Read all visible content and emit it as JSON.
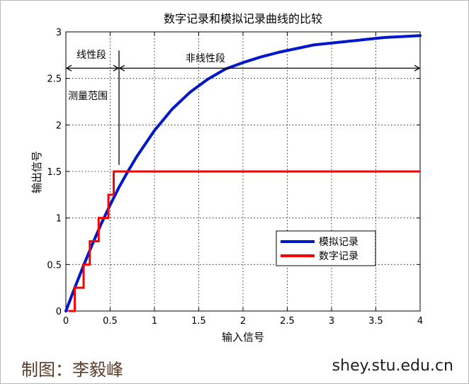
{
  "chart_data": {
    "type": "line",
    "title": "数字记录和模拟记录曲线的比较",
    "xlabel": "输入信号",
    "ylabel": "输出信号",
    "xlim": [
      0,
      4
    ],
    "ylim": [
      0,
      3
    ],
    "xticks": [
      "0",
      "0.5",
      "1",
      "1.5",
      "2",
      "2.5",
      "3",
      "3.5",
      "4"
    ],
    "yticks": [
      "0",
      "0.5",
      "1",
      "1.5",
      "2",
      "2.5",
      "3"
    ],
    "grid": true,
    "legend_position": "bottom-right",
    "series": [
      {
        "name": "模拟记录",
        "color": "#0018c8",
        "x": [
          0,
          0.1,
          0.2,
          0.3,
          0.4,
          0.5,
          0.6,
          0.7,
          0.8,
          0.9,
          1.0,
          1.2,
          1.4,
          1.6,
          1.8,
          2.0,
          2.2,
          2.4,
          2.6,
          2.8,
          3.0,
          3.2,
          3.4,
          3.6,
          3.8,
          4.0
        ],
        "values": [
          0,
          0.25,
          0.49,
          0.72,
          0.94,
          1.14,
          1.33,
          1.5,
          1.66,
          1.8,
          1.94,
          2.17,
          2.35,
          2.49,
          2.6,
          2.67,
          2.73,
          2.78,
          2.82,
          2.86,
          2.88,
          2.9,
          2.92,
          2.94,
          2.95,
          2.96
        ]
      },
      {
        "name": "数字记录",
        "color": "#ff0000",
        "step": true,
        "x": [
          0.03,
          0.1,
          0.2,
          0.27,
          0.37,
          0.48,
          0.54,
          0.6,
          4.0
        ],
        "values": [
          0,
          0.25,
          0.5,
          0.75,
          1.0,
          1.25,
          1.5,
          1.5,
          1.5
        ]
      }
    ],
    "annotations": {
      "linear_label": "线性段",
      "nonlinear_label": "非线性段",
      "range_label": "测量范围",
      "linear_range": [
        0,
        0.6
      ],
      "nonlinear_range": [
        0.6,
        4
      ],
      "arrow_y": 2.61,
      "divider_x": 0.6,
      "divider_y_top": 2.8,
      "divider_y_bottom": 1.57
    }
  },
  "footer": {
    "credit": "制图：李毅峰",
    "site": "shey.stu.edu.cn"
  }
}
